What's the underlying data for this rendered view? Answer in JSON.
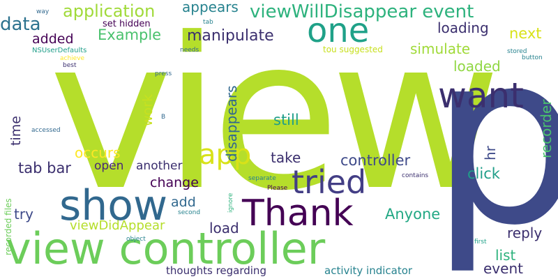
{
  "words": [
    {
      "text": "view",
      "color": "#b5de2b"
    },
    {
      "text": "p",
      "color": "#3e4a89"
    },
    {
      "text": "view controller",
      "color": "#6ccd5a"
    },
    {
      "text": "show",
      "color": "#31688e"
    },
    {
      "text": "Thank",
      "color": "#440154"
    },
    {
      "text": "one",
      "color": "#1fa188"
    },
    {
      "text": "want",
      "color": "#3b2f6e"
    },
    {
      "text": "tried",
      "color": "#433e85"
    },
    {
      "text": "app",
      "color": "#d8e219"
    },
    {
      "text": "viewWillDisappear event",
      "color": "#2db27d"
    },
    {
      "text": "application",
      "color": "#a0da39"
    },
    {
      "text": "appears",
      "color": "#26828e"
    },
    {
      "text": "data",
      "color": "#2c728e"
    },
    {
      "text": "Example",
      "color": "#4ac16d"
    },
    {
      "text": "manipulate",
      "color": "#3b2f6e"
    },
    {
      "text": "added",
      "color": "#440154"
    },
    {
      "text": "set hidden",
      "color": "#440154"
    },
    {
      "text": "loading",
      "color": "#3b2f6e"
    },
    {
      "text": "next",
      "color": "#d8e219"
    },
    {
      "text": "simulate",
      "color": "#a0da39"
    },
    {
      "text": "loaded",
      "color": "#90d743"
    },
    {
      "text": "disappears",
      "color": "#31688e"
    },
    {
      "text": "work",
      "color": "#c8e020"
    },
    {
      "text": "still",
      "color": "#1f9e89"
    },
    {
      "text": "time",
      "color": "#3b2f6e"
    },
    {
      "text": "occurs",
      "color": "#fde725"
    },
    {
      "text": "take",
      "color": "#3b2f6e"
    },
    {
      "text": "controller",
      "color": "#3e4a89"
    },
    {
      "text": "tab bar",
      "color": "#3b2f6e"
    },
    {
      "text": "open",
      "color": "#482878"
    },
    {
      "text": "another",
      "color": "#3b2f6e"
    },
    {
      "text": "click",
      "color": "#1f9e89"
    },
    {
      "text": "change",
      "color": "#440154"
    },
    {
      "text": "hr",
      "color": "#3e4a89"
    },
    {
      "text": "recorder",
      "color": "#4ac16d"
    },
    {
      "text": "add",
      "color": "#31688e"
    },
    {
      "text": "try",
      "color": "#3e4a89"
    },
    {
      "text": "Anyone",
      "color": "#22a884"
    },
    {
      "text": "viewDidAppear",
      "color": "#b5de2b"
    },
    {
      "text": "load",
      "color": "#3b2f6e"
    },
    {
      "text": "reply",
      "color": "#3b2f6e"
    },
    {
      "text": "list",
      "color": "#2db27d"
    },
    {
      "text": "event",
      "color": "#3b2f6e"
    },
    {
      "text": "thoughts regarding",
      "color": "#3b2f6e"
    },
    {
      "text": "activity indicator",
      "color": "#26828e"
    },
    {
      "text": "recorded files",
      "color": "#6ccd5a"
    },
    {
      "text": "way",
      "color": "#31688e"
    },
    {
      "text": "tab",
      "color": "#26828e"
    },
    {
      "text": "NSUserDefaults",
      "color": "#1f9e89"
    },
    {
      "text": "achieve",
      "color": "#fde725"
    },
    {
      "text": "best",
      "color": "#3b2f6e"
    },
    {
      "text": "needs",
      "color": "#31688e"
    },
    {
      "text": "tou suggested",
      "color": "#c8e020"
    },
    {
      "text": "stored",
      "color": "#26828e"
    },
    {
      "text": "button",
      "color": "#26828e"
    },
    {
      "text": "press",
      "color": "#31688e"
    },
    {
      "text": "B",
      "color": "#31688e"
    },
    {
      "text": "accessed",
      "color": "#31688e"
    },
    {
      "text": "ignore",
      "color": "#2db27d"
    },
    {
      "text": "second",
      "color": "#26828e"
    },
    {
      "text": "separate",
      "color": "#26828e"
    },
    {
      "text": "Please",
      "color": "#440154"
    },
    {
      "text": "contains",
      "color": "#3b2f6e"
    },
    {
      "text": "object",
      "color": "#26828e"
    },
    {
      "text": "first",
      "color": "#1fa188"
    }
  ]
}
